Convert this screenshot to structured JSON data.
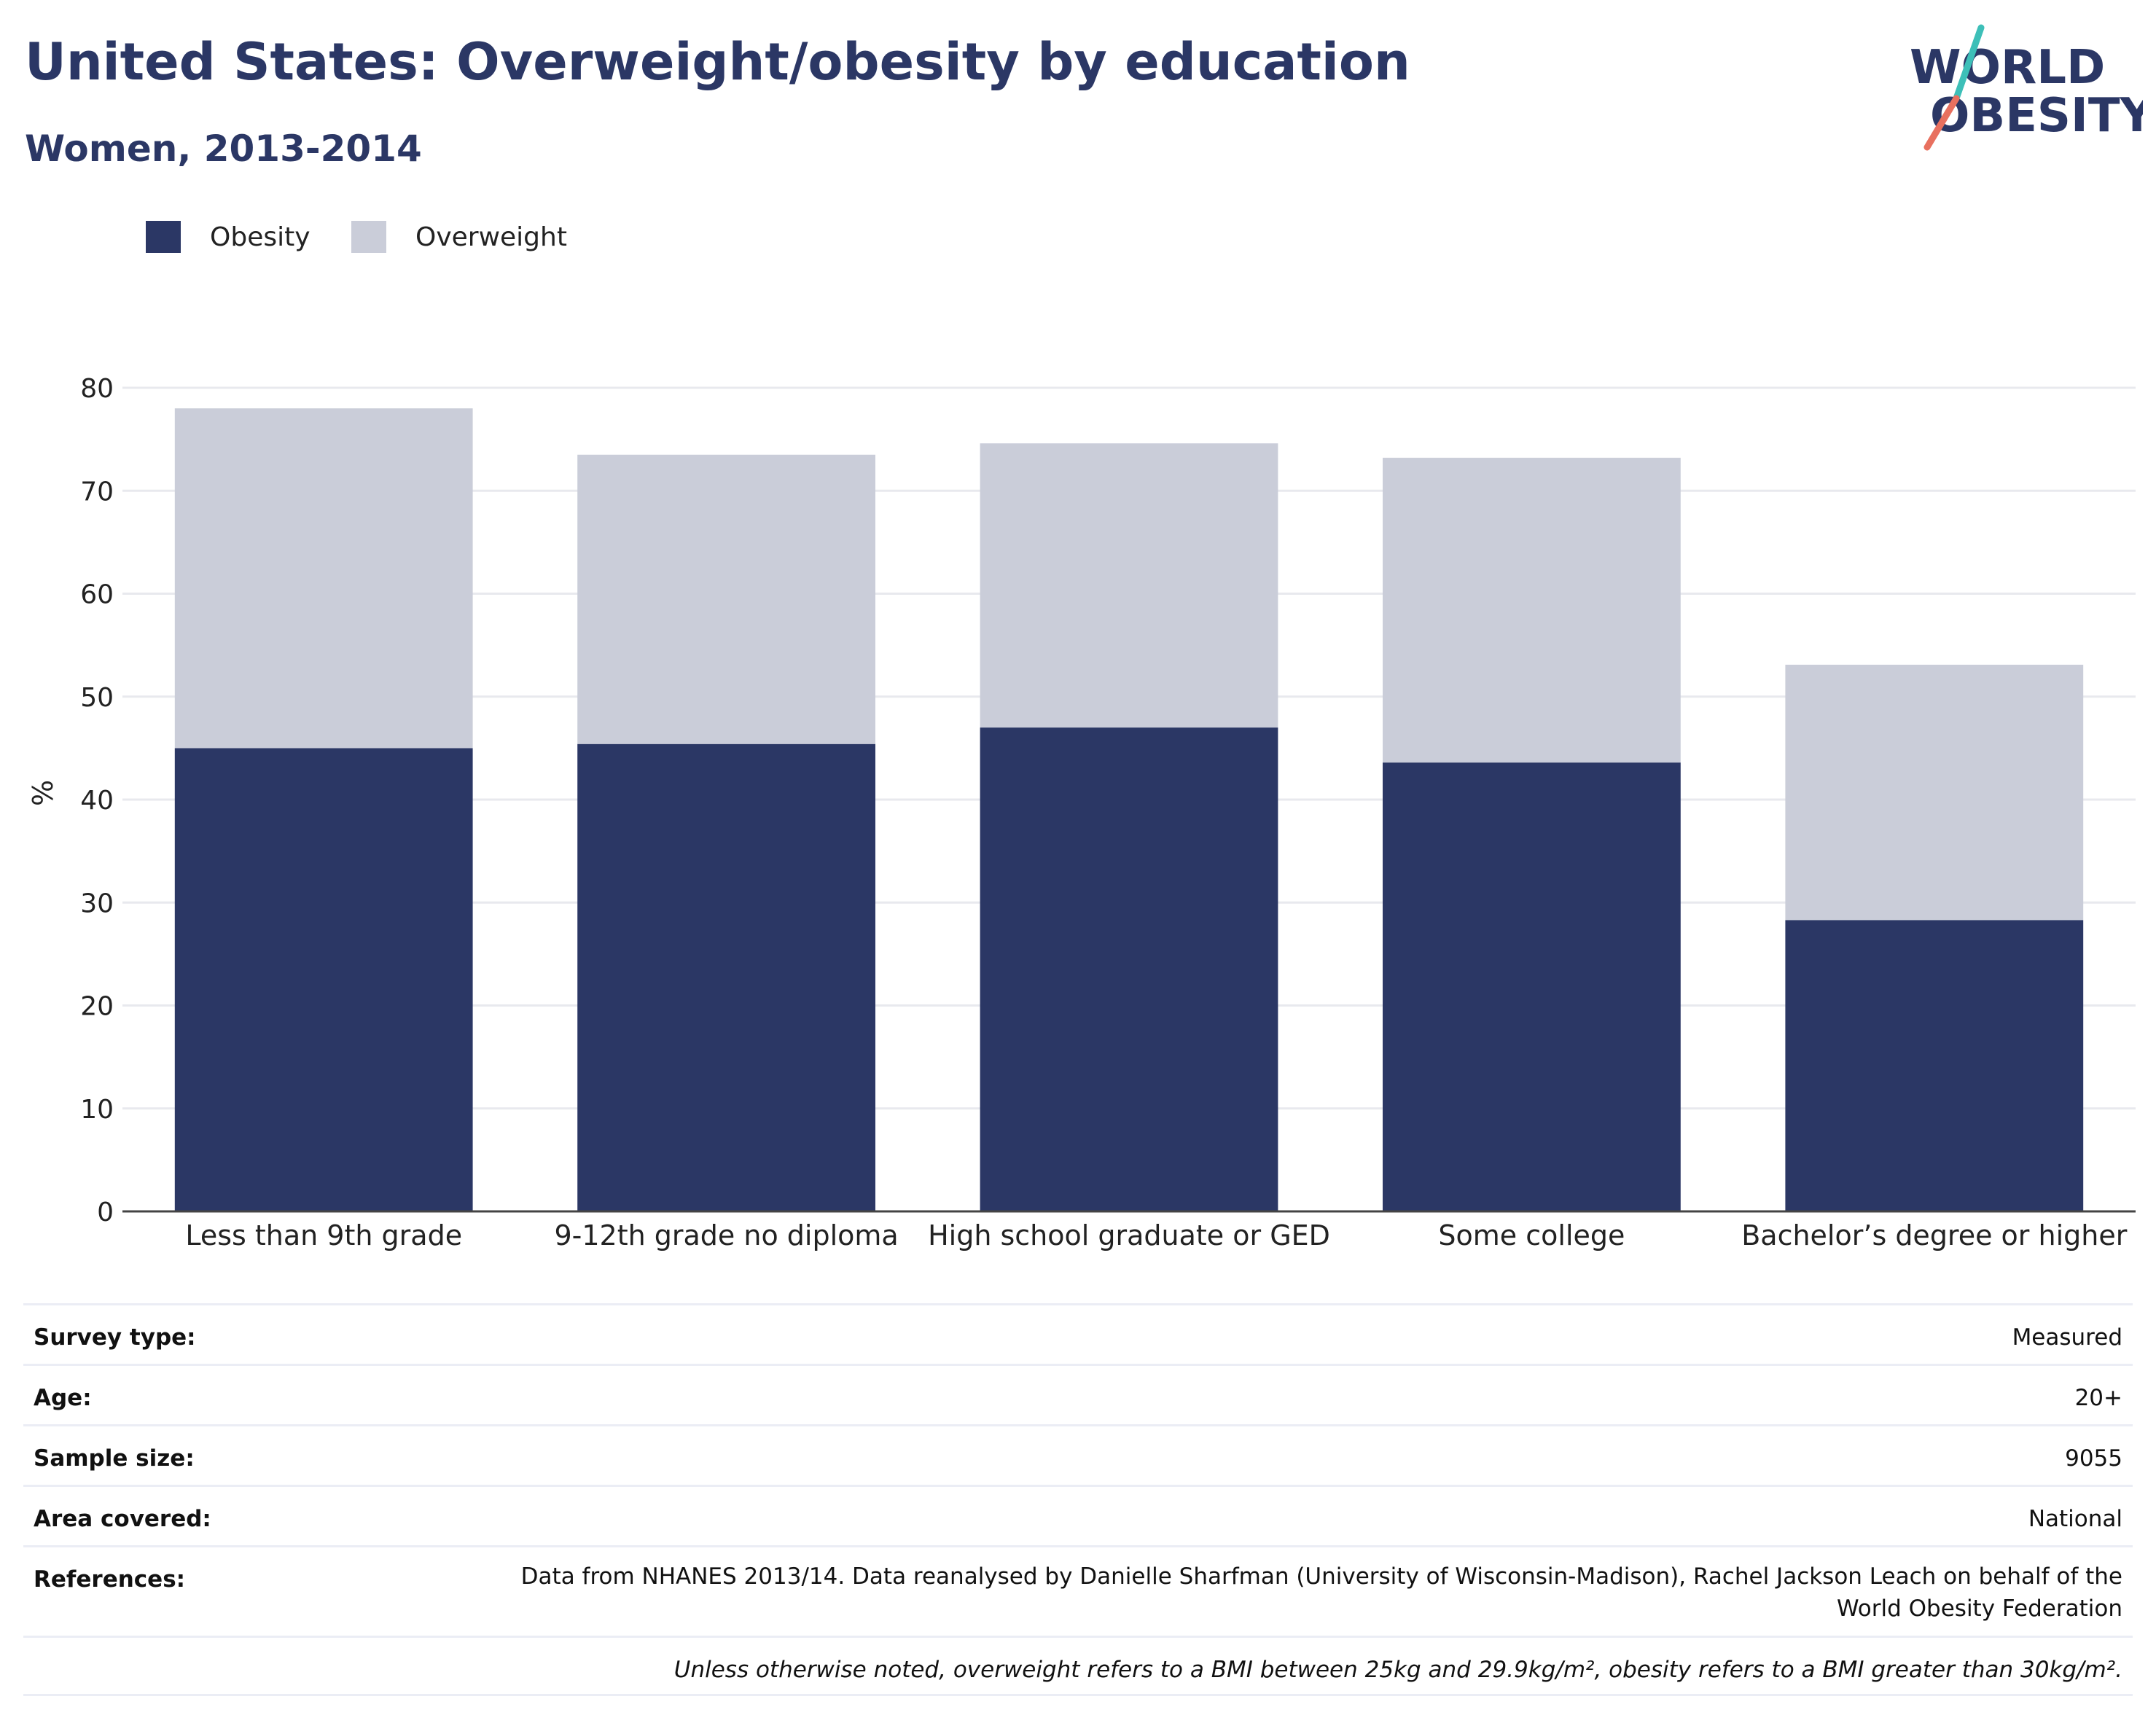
{
  "header": {
    "title": "United States: Overweight/obesity by education",
    "subtitle": "Women, 2013-2014"
  },
  "logo": {
    "line1": "WORLD",
    "line2": "OBESITY",
    "accent_teal": "#3dbfb8",
    "accent_coral": "#e8705f",
    "text_color": "#2b3765"
  },
  "legend": {
    "items": [
      {
        "label": "Obesity",
        "color": "#2b3765"
      },
      {
        "label": "Overweight",
        "color": "#cacdd9"
      }
    ]
  },
  "chart_data": {
    "type": "bar",
    "stacked": true,
    "categories": [
      "Less than 9th grade",
      "9-12th grade no diploma",
      "High school graduate or GED",
      "Some college",
      "Bachelor’s degree or higher"
    ],
    "series": [
      {
        "name": "Obesity",
        "color": "#2b3765",
        "values": [
          45.0,
          45.4,
          47.0,
          43.6,
          28.3
        ]
      },
      {
        "name": "Overweight",
        "color": "#cacdd9",
        "values": [
          33.0,
          28.1,
          27.6,
          29.6,
          24.8
        ]
      }
    ],
    "ylabel": "%",
    "ylim": [
      0,
      80
    ],
    "yticks": [
      0,
      10,
      20,
      30,
      40,
      50,
      60,
      70,
      80
    ],
    "grid": true,
    "legend_position": "top-left"
  },
  "info": {
    "survey_type": {
      "label": "Survey type:",
      "value": "Measured"
    },
    "age": {
      "label": "Age:",
      "value": "20+"
    },
    "sample_size": {
      "label": "Sample size:",
      "value": "9055"
    },
    "area": {
      "label": "Area covered:",
      "value": "National"
    },
    "references": {
      "label": "References:",
      "value": "Data from NHANES 2013/14. Data reanalysed by Danielle Sharfman (University of Wisconsin-Madison), Rachel Jackson Leach on behalf of the World Obesity Federation"
    },
    "note": "Unless otherwise noted, overweight refers to a BMI between 25kg and 29.9kg/m², obesity refers to a BMI greater than 30kg/m²."
  }
}
